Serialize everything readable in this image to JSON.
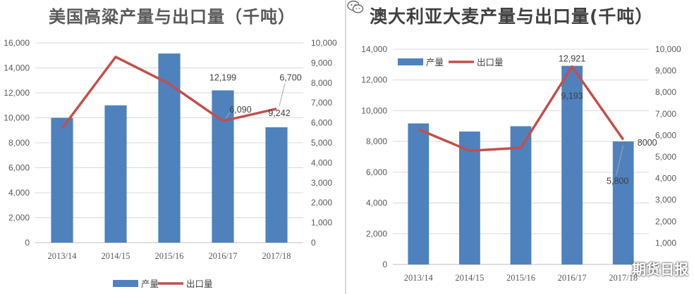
{
  "chart_data": [
    {
      "type": "bar",
      "title": "美国高粱产量与出口量（千吨）",
      "categories": [
        "2013/14",
        "2014/15",
        "2015/16",
        "2016/17",
        "2017/18"
      ],
      "series": [
        {
          "name": "产量",
          "type": "bar",
          "axis": "left",
          "values": [
            10000,
            11000,
            15150,
            12199,
            9242
          ]
        },
        {
          "name": "出口量",
          "type": "line",
          "axis": "right",
          "values": [
            5720,
            9300,
            7950,
            6090,
            6700
          ]
        }
      ],
      "data_labels": [
        {
          "series": "产量",
          "category": "2016/17",
          "text": "12,199"
        },
        {
          "series": "产量",
          "category": "2017/18",
          "text": "9,242"
        },
        {
          "series": "出口量",
          "category": "2016/17",
          "text": "6,090"
        },
        {
          "series": "出口量",
          "category": "2017/18",
          "text": "6,700"
        }
      ],
      "y_left": {
        "min": 0,
        "max": 16000,
        "step": 2000,
        "ticks": [
          "0",
          "2,000",
          "4,000",
          "6,000",
          "8,000",
          "10,000",
          "12,000",
          "14,000",
          "16,000"
        ]
      },
      "y_right": {
        "min": 0,
        "max": 10000,
        "step": 1000,
        "ticks": [
          "0",
          "1,000",
          "2,000",
          "3,000",
          "4,000",
          "5,000",
          "6,000",
          "7,000",
          "8,000",
          "9,000",
          "10,000"
        ]
      },
      "grid": true,
      "legend": {
        "placement": "bottom",
        "items": [
          "产量",
          "出口量"
        ]
      },
      "colors": {
        "bar": "#4f81bd",
        "line": "#c0504d"
      }
    },
    {
      "type": "bar",
      "title": "澳大利亚大麦产量与出口量(千吨）",
      "categories": [
        "2013/14",
        "2014/15",
        "2015/16",
        "2016/17",
        "2017/18"
      ],
      "series": [
        {
          "name": "产量",
          "type": "bar",
          "axis": "left",
          "values": [
            9174,
            8646,
            8992,
            12921,
            8000
          ]
        },
        {
          "name": "出口量",
          "type": "line",
          "axis": "right",
          "values": [
            6280,
            5280,
            5420,
            9193,
            5800
          ]
        }
      ],
      "data_labels": [
        {
          "series": "产量",
          "category": "2016/17",
          "text": "12,921"
        },
        {
          "series": "产量",
          "category": "2017/18",
          "text": "8000"
        },
        {
          "series": "出口量",
          "category": "2016/17",
          "text": "9,193"
        },
        {
          "series": "出口量",
          "category": "2017/18",
          "text": "5,800"
        }
      ],
      "y_left": {
        "min": 0,
        "max": 14000,
        "step": 2000,
        "ticks": [
          "0",
          "2,000",
          "4,000",
          "6,000",
          "8,000",
          "10,000",
          "12,000",
          "14,000"
        ]
      },
      "y_right": {
        "min": 0,
        "max": 10000,
        "step": 1000,
        "ticks": [
          "1,000",
          "2,000",
          "3,000",
          "4,000",
          "5,000",
          "6,000",
          "7,000",
          "8,000",
          "9,000",
          "10,000"
        ]
      },
      "grid": true,
      "legend": {
        "placement": "top-left",
        "items": [
          "产量",
          "出口量"
        ]
      },
      "colors": {
        "bar": "#4f81bd",
        "line": "#c0504d"
      }
    }
  ],
  "watermark": {
    "text": "期货日报"
  }
}
